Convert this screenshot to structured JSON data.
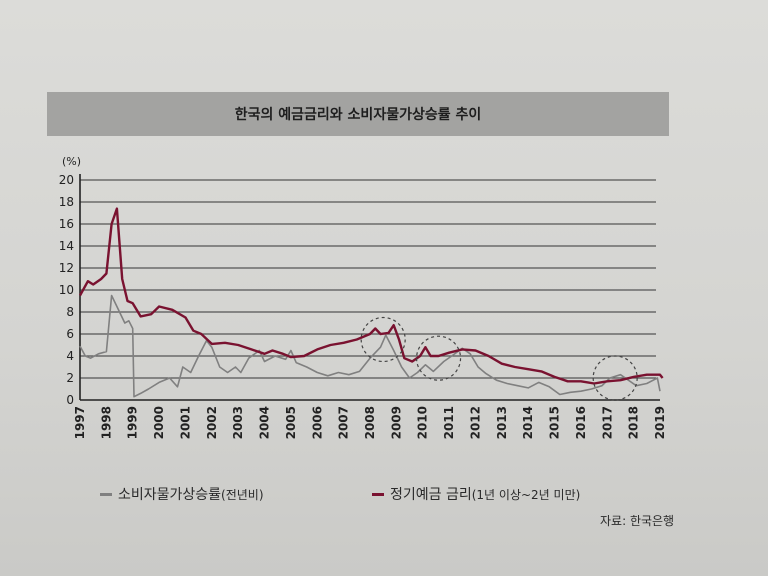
{
  "chart_data": {
    "type": "line",
    "title": "한국의 예금금리와 소비자물가상승률 추이",
    "ylabel": "(%)",
    "xlabel": "",
    "ylim": [
      0,
      20
    ],
    "xlim": [
      1997,
      2019
    ],
    "yticks": [
      "0",
      "2",
      "4",
      "6",
      "8",
      "10",
      "12",
      "14",
      "16",
      "18",
      "20"
    ],
    "xticks": [
      "1997",
      "1998",
      "1999",
      "2000",
      "2001",
      "2002",
      "2003",
      "2004",
      "2005",
      "2006",
      "2007",
      "2008",
      "2009",
      "2010",
      "2011",
      "2012",
      "2013",
      "2014",
      "2015",
      "2016",
      "2017",
      "2018",
      "2019"
    ],
    "grid": true,
    "legend_placement": "bottom",
    "series": [
      {
        "name": "소비자물가상승률",
        "name_suffix": "(전년비)",
        "color": "#808080",
        "x": [
          1997.0,
          1997.2,
          1997.4,
          1997.7,
          1998.0,
          1998.2,
          1998.4,
          1998.7,
          1998.85,
          1999.0,
          1999.05,
          1999.3,
          1999.6,
          2000.0,
          2000.4,
          2000.7,
          2000.9,
          2001.2,
          2001.5,
          2001.8,
          2002.0,
          2002.3,
          2002.6,
          2002.9,
          2003.1,
          2003.4,
          2003.8,
          2004.0,
          2004.4,
          2004.8,
          2005.0,
          2005.2,
          2005.6,
          2006.0,
          2006.4,
          2006.8,
          2007.2,
          2007.6,
          2008.0,
          2008.4,
          2008.6,
          2008.9,
          2009.2,
          2009.5,
          2009.8,
          2010.1,
          2010.4,
          2010.8,
          2011.1,
          2011.5,
          2011.8,
          2012.1,
          2012.4,
          2012.8,
          2013.2,
          2013.6,
          2014.0,
          2014.4,
          2014.8,
          2015.2,
          2015.6,
          2016.0,
          2016.4,
          2016.8,
          2017.1,
          2017.5,
          2017.8,
          2018.1,
          2018.5,
          2018.9,
          2019.0
        ],
        "y": [
          4.9,
          4.0,
          3.8,
          4.2,
          4.4,
          9.5,
          8.5,
          7.0,
          7.2,
          6.5,
          0.3,
          0.6,
          1.0,
          1.6,
          2.0,
          1.2,
          3.0,
          2.5,
          4.0,
          5.4,
          4.8,
          3.0,
          2.5,
          3.0,
          2.5,
          3.8,
          4.5,
          3.5,
          4.0,
          3.7,
          4.5,
          3.4,
          3.0,
          2.5,
          2.2,
          2.5,
          2.3,
          2.6,
          3.8,
          4.8,
          5.9,
          4.5,
          3.0,
          2.0,
          2.5,
          3.2,
          2.6,
          3.5,
          4.0,
          4.7,
          4.2,
          3.0,
          2.4,
          1.8,
          1.5,
          1.3,
          1.1,
          1.6,
          1.2,
          0.5,
          0.7,
          0.8,
          1.0,
          1.3,
          2.0,
          2.3,
          1.8,
          1.3,
          1.5,
          2.0,
          0.8
        ]
      },
      {
        "name": "정기예금 금리",
        "name_suffix": "(1년 이상~2년 미만)",
        "color": "#7a1230",
        "x": [
          1997.0,
          1997.3,
          1997.5,
          1997.8,
          1998.0,
          1998.2,
          1998.4,
          1998.6,
          1998.8,
          1999.0,
          1999.3,
          1999.7,
          2000.0,
          2000.5,
          2001.0,
          2001.3,
          2001.6,
          2002.0,
          2002.5,
          2003.0,
          2003.5,
          2004.0,
          2004.3,
          2004.7,
          2005.0,
          2005.5,
          2006.0,
          2006.5,
          2007.0,
          2007.5,
          2008.0,
          2008.2,
          2008.4,
          2008.7,
          2008.9,
          2009.1,
          2009.3,
          2009.6,
          2009.9,
          2010.1,
          2010.3,
          2010.6,
          2011.0,
          2011.5,
          2012.0,
          2012.5,
          2013.0,
          2013.5,
          2014.0,
          2014.5,
          2015.0,
          2015.5,
          2016.0,
          2016.5,
          2017.0,
          2017.5,
          2018.0,
          2018.5,
          2019.0,
          2019.1
        ],
        "y": [
          9.5,
          10.8,
          10.5,
          11.0,
          11.5,
          16.0,
          17.4,
          11.0,
          9.0,
          8.8,
          7.6,
          7.8,
          8.5,
          8.2,
          7.5,
          6.3,
          6.0,
          5.1,
          5.2,
          5.0,
          4.6,
          4.2,
          4.5,
          4.2,
          3.9,
          4.0,
          4.6,
          5.0,
          5.2,
          5.5,
          6.0,
          6.5,
          6.0,
          6.1,
          6.8,
          5.5,
          3.8,
          3.5,
          4.0,
          4.8,
          4.0,
          4.0,
          4.3,
          4.6,
          4.5,
          4.0,
          3.3,
          3.0,
          2.8,
          2.6,
          2.1,
          1.7,
          1.7,
          1.5,
          1.7,
          1.8,
          2.1,
          2.3,
          2.3,
          2.0
        ]
      }
    ],
    "annotations": [
      {
        "type": "dashed-circle",
        "x": 2008.5,
        "y": 5.5
      },
      {
        "type": "dashed-circle",
        "x": 2010.6,
        "y": 3.8
      },
      {
        "type": "dashed-circle",
        "x": 2017.3,
        "y": 2.0
      }
    ],
    "source": "자료: 한국은행"
  }
}
